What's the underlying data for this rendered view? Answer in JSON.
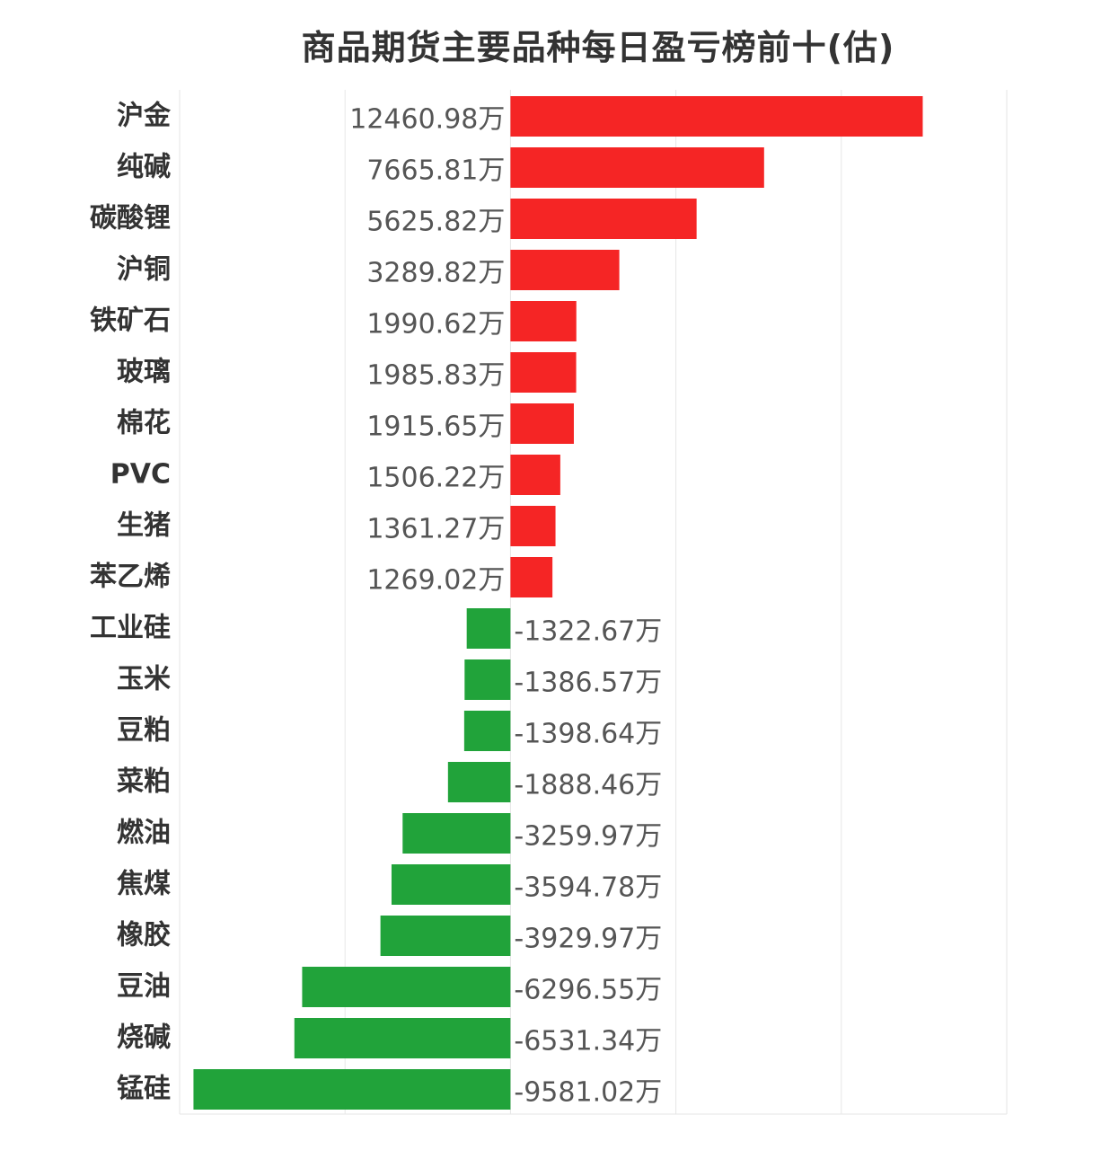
{
  "chart_data": {
    "type": "bar",
    "orientation": "horizontal",
    "title": "商品期货主要品种每日盈亏榜前十(估)",
    "unit_suffix": "万",
    "categories": [
      "沪金",
      "纯碱",
      "碳酸锂",
      "沪铜",
      "铁矿石",
      "玻璃",
      "棉花",
      "PVC",
      "生猪",
      "苯乙烯",
      "工业硅",
      "玉米",
      "豆粕",
      "菜粕",
      "燃油",
      "焦煤",
      "橡胶",
      "豆油",
      "烧碱",
      "锰硅"
    ],
    "values": [
      12460.98,
      7665.81,
      5625.82,
      3289.82,
      1990.62,
      1985.83,
      1915.65,
      1506.22,
      1361.27,
      1269.02,
      -1322.67,
      -1386.57,
      -1398.64,
      -1888.46,
      -3259.97,
      -3594.78,
      -3929.97,
      -6296.55,
      -6531.34,
      -9581.02
    ],
    "value_labels": [
      "12460.98万",
      "7665.81万",
      "5625.82万",
      "3289.82万",
      "1990.62万",
      "1985.83万",
      "1915.65万",
      "1506.22万",
      "1361.27万",
      "1269.02万",
      "-1322.67万",
      "-1386.57万",
      "-1398.64万",
      "-1888.46万",
      "-3259.97万",
      "-3594.78万",
      "-3929.97万",
      "-6296.55万",
      "-6531.34万",
      "-9581.02万"
    ],
    "xlim": [
      -10000,
      15000
    ],
    "grid": true,
    "colors": {
      "positive": "#f52525",
      "negative": "#21a33a"
    }
  }
}
